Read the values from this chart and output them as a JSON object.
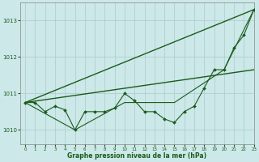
{
  "bg_color": "#cce8e8",
  "grid_color": "#aacccc",
  "line_color": "#1a5c1a",
  "xlabel": "Graphe pression niveau de la mer (hPa)",
  "xlim": [
    -0.5,
    23
  ],
  "ylim": [
    1009.6,
    1013.5
  ],
  "yticks": [
    1010,
    1011,
    1012,
    1013
  ],
  "xticks": [
    0,
    1,
    2,
    3,
    4,
    5,
    6,
    7,
    8,
    9,
    10,
    11,
    12,
    13,
    14,
    15,
    16,
    17,
    18,
    19,
    20,
    21,
    22,
    23
  ],
  "series_markers": [
    1010.75,
    1010.75,
    1010.5,
    1010.65,
    1010.55,
    1010.0,
    1010.5,
    1010.5,
    1010.5,
    1010.6,
    1011.0,
    1010.8,
    1010.5,
    1010.5,
    1010.3,
    1010.2,
    1010.5,
    1010.65,
    1011.15,
    1011.65,
    1011.65,
    1012.25,
    1012.6,
    1013.3
  ],
  "line1": [
    [
      0,
      1010.75
    ],
    [
      23,
      1013.3
    ]
  ],
  "line2": [
    [
      0,
      1010.75
    ],
    [
      23,
      1011.65
    ]
  ],
  "line3": [
    [
      0,
      1010.75
    ],
    [
      5,
      1010.0
    ],
    [
      10,
      1010.75
    ],
    [
      15,
      1010.75
    ],
    [
      20,
      1011.65
    ],
    [
      23,
      1013.3
    ]
  ]
}
